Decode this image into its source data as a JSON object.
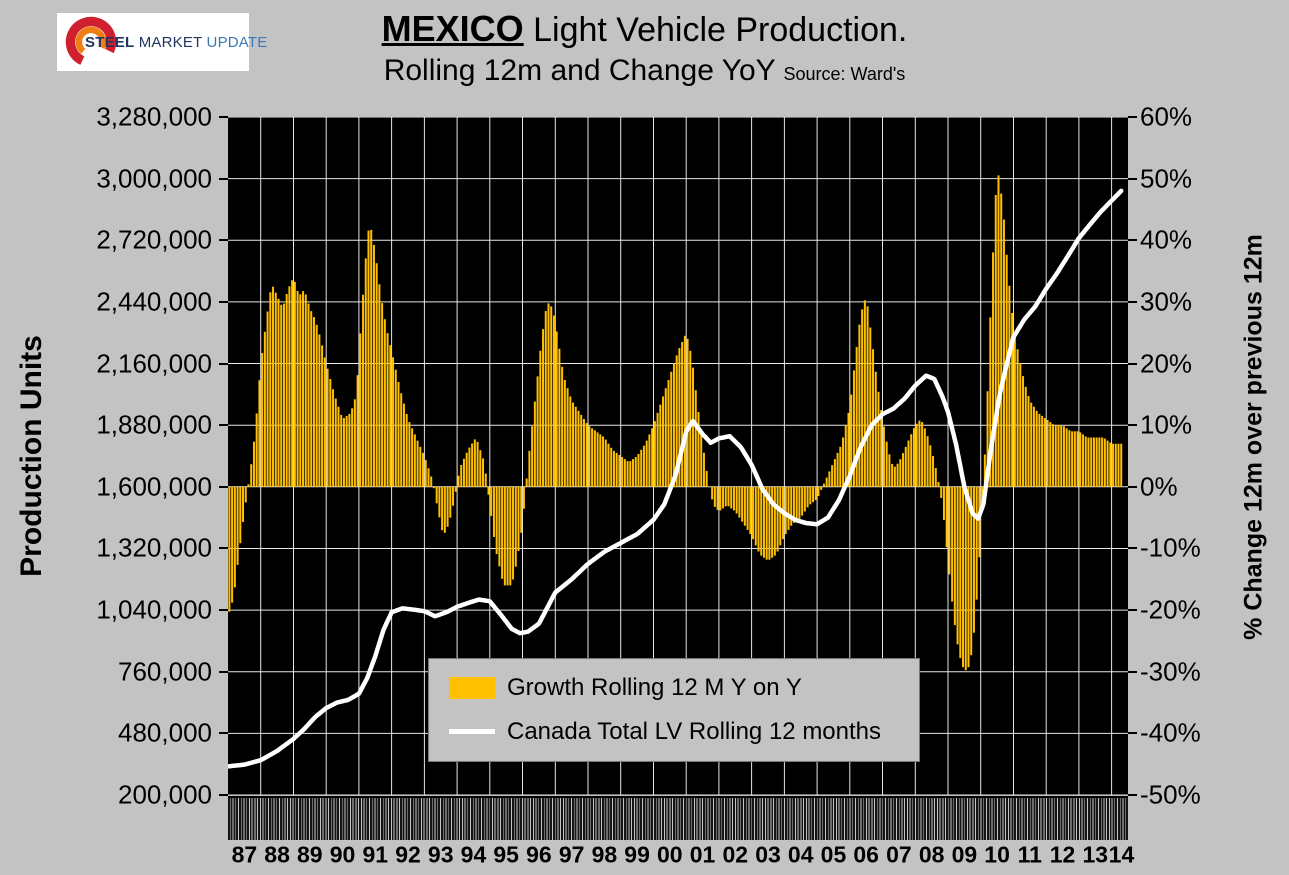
{
  "logo": {
    "steel": "STEEL",
    "market": "MARKET",
    "update": "UPDATE"
  },
  "title": {
    "country": "MEXICO",
    "main_rest": " Light Vehicle Production.",
    "line2": "Rolling 12m and Change YoY",
    "source": "Source: Ward's"
  },
  "left_axis": {
    "title": "Production Units",
    "ticks": [
      "3,280,000",
      "3,000,000",
      "2,720,000",
      "2,440,000",
      "2,160,000",
      "1,880,000",
      "1,600,000",
      "1,320,000",
      "1,040,000",
      "760,000",
      "480,000",
      "200,000"
    ]
  },
  "right_axis": {
    "title": "% Change 12m over previous 12m",
    "ticks": [
      "60%",
      "50%",
      "40%",
      "30%",
      "20%",
      "10%",
      "0%",
      "-10%",
      "-20%",
      "-30%",
      "-40%",
      "-50%"
    ]
  },
  "x_axis": {
    "years": [
      "87",
      "88",
      "89",
      "90",
      "91",
      "92",
      "93",
      "94",
      "95",
      "96",
      "97",
      "98",
      "99",
      "00",
      "01",
      "02",
      "03",
      "04",
      "05",
      "06",
      "07",
      "08",
      "09",
      "10",
      "11",
      "12",
      "13",
      "14"
    ]
  },
  "legend": {
    "items": [
      {
        "label": "Growth Rolling 12 M Y on Y",
        "type": "bar",
        "color": "#FFC000"
      },
      {
        "label": "Canada Total LV Rolling 12 months",
        "type": "line",
        "color": "#FFFFFF"
      }
    ]
  },
  "chart_data": {
    "type": "bar+line",
    "interval": "monthly",
    "x_domain": [
      1987.0,
      2014.5
    ],
    "data_end": 2014.33,
    "left_axis": {
      "label": "Production Units",
      "min": 200000,
      "max": 3280000,
      "step": 280000
    },
    "right_axis": {
      "label": "% Change 12m over previous 12m",
      "min": -50,
      "max": 60,
      "step": 10,
      "unit": "%"
    },
    "plot_background": "#000000",
    "grid_color": "#FFFFFF",
    "series": [
      {
        "name": "Growth Rolling 12 M Y on Y",
        "type": "bar",
        "axis": "right",
        "color": "#FFC000",
        "anchors": [
          [
            1987.0,
            -21
          ],
          [
            1987.17,
            -18
          ],
          [
            1987.33,
            -11
          ],
          [
            1987.5,
            -4
          ],
          [
            1987.67,
            2
          ],
          [
            1987.83,
            9
          ],
          [
            1988.0,
            20
          ],
          [
            1988.17,
            27
          ],
          [
            1988.33,
            33
          ],
          [
            1988.5,
            31
          ],
          [
            1988.67,
            29
          ],
          [
            1988.83,
            32
          ],
          [
            1989.0,
            34
          ],
          [
            1989.17,
            31
          ],
          [
            1989.33,
            32
          ],
          [
            1989.5,
            29
          ],
          [
            1989.67,
            27
          ],
          [
            1989.83,
            24
          ],
          [
            1990.0,
            20
          ],
          [
            1990.25,
            15
          ],
          [
            1990.5,
            11
          ],
          [
            1990.75,
            12
          ],
          [
            1990.92,
            15
          ],
          [
            1991.08,
            28
          ],
          [
            1991.25,
            40
          ],
          [
            1991.33,
            43
          ],
          [
            1991.5,
            38
          ],
          [
            1991.67,
            31
          ],
          [
            1991.83,
            26
          ],
          [
            1992.0,
            22
          ],
          [
            1992.25,
            16
          ],
          [
            1992.5,
            11
          ],
          [
            1992.75,
            8
          ],
          [
            1993.0,
            5
          ],
          [
            1993.25,
            1
          ],
          [
            1993.42,
            -4
          ],
          [
            1993.58,
            -8
          ],
          [
            1993.75,
            -6
          ],
          [
            1993.92,
            -2
          ],
          [
            1994.08,
            3
          ],
          [
            1994.33,
            6
          ],
          [
            1994.58,
            8
          ],
          [
            1994.83,
            4
          ],
          [
            1995.0,
            -3
          ],
          [
            1995.17,
            -10
          ],
          [
            1995.42,
            -16
          ],
          [
            1995.67,
            -16
          ],
          [
            1995.83,
            -12
          ],
          [
            1996.0,
            -6
          ],
          [
            1996.17,
            4
          ],
          [
            1996.42,
            16
          ],
          [
            1996.58,
            24
          ],
          [
            1996.75,
            30
          ],
          [
            1996.92,
            29
          ],
          [
            1997.08,
            24
          ],
          [
            1997.25,
            18
          ],
          [
            1997.5,
            14
          ],
          [
            1997.75,
            12
          ],
          [
            1998.0,
            10
          ],
          [
            1998.25,
            9
          ],
          [
            1998.5,
            8
          ],
          [
            1998.75,
            6
          ],
          [
            1999.0,
            5
          ],
          [
            1999.25,
            4
          ],
          [
            1999.5,
            5
          ],
          [
            1999.75,
            7
          ],
          [
            2000.0,
            10
          ],
          [
            2000.25,
            14
          ],
          [
            2000.5,
            18
          ],
          [
            2000.75,
            22
          ],
          [
            2001.0,
            25
          ],
          [
            2001.17,
            21
          ],
          [
            2001.33,
            14
          ],
          [
            2001.5,
            7
          ],
          [
            2001.67,
            1
          ],
          [
            2001.83,
            -3
          ],
          [
            2002.0,
            -4
          ],
          [
            2002.25,
            -3
          ],
          [
            2002.5,
            -4
          ],
          [
            2002.75,
            -6
          ],
          [
            2003.0,
            -8
          ],
          [
            2003.25,
            -11
          ],
          [
            2003.5,
            -12
          ],
          [
            2003.75,
            -11
          ],
          [
            2004.0,
            -8
          ],
          [
            2004.25,
            -6
          ],
          [
            2004.5,
            -5
          ],
          [
            2004.75,
            -3
          ],
          [
            2005.0,
            -2
          ],
          [
            2005.25,
            1
          ],
          [
            2005.5,
            4
          ],
          [
            2005.75,
            7
          ],
          [
            2006.0,
            13
          ],
          [
            2006.17,
            21
          ],
          [
            2006.33,
            28
          ],
          [
            2006.5,
            31
          ],
          [
            2006.67,
            24
          ],
          [
            2006.83,
            17
          ],
          [
            2007.0,
            11
          ],
          [
            2007.17,
            6
          ],
          [
            2007.33,
            3
          ],
          [
            2007.5,
            4
          ],
          [
            2007.67,
            6
          ],
          [
            2007.83,
            8
          ],
          [
            2008.0,
            10
          ],
          [
            2008.17,
            11
          ],
          [
            2008.33,
            9
          ],
          [
            2008.5,
            6
          ],
          [
            2008.67,
            2
          ],
          [
            2008.83,
            -3
          ],
          [
            2009.0,
            -12
          ],
          [
            2009.17,
            -21
          ],
          [
            2009.33,
            -27
          ],
          [
            2009.5,
            -30
          ],
          [
            2009.67,
            -29
          ],
          [
            2009.83,
            -22
          ],
          [
            2010.0,
            -8
          ],
          [
            2010.17,
            10
          ],
          [
            2010.33,
            33
          ],
          [
            2010.5,
            52
          ],
          [
            2010.67,
            46
          ],
          [
            2010.83,
            35
          ],
          [
            2011.0,
            26
          ],
          [
            2011.17,
            21
          ],
          [
            2011.33,
            17
          ],
          [
            2011.5,
            14
          ],
          [
            2011.75,
            12
          ],
          [
            2012.0,
            11
          ],
          [
            2012.25,
            10
          ],
          [
            2012.5,
            10
          ],
          [
            2012.75,
            9
          ],
          [
            2013.0,
            9
          ],
          [
            2013.25,
            8
          ],
          [
            2013.5,
            8
          ],
          [
            2013.75,
            8
          ],
          [
            2014.0,
            7
          ],
          [
            2014.33,
            7
          ]
        ]
      },
      {
        "name": "Canada Total LV Rolling 12 months",
        "type": "line",
        "axis": "left",
        "color": "#FFFFFF",
        "anchors": [
          [
            1987.0,
            330000
          ],
          [
            1987.5,
            338000
          ],
          [
            1988.0,
            358000
          ],
          [
            1988.5,
            400000
          ],
          [
            1989.0,
            455000
          ],
          [
            1989.33,
            500000
          ],
          [
            1989.67,
            555000
          ],
          [
            1990.0,
            595000
          ],
          [
            1990.33,
            620000
          ],
          [
            1990.67,
            632000
          ],
          [
            1991.0,
            660000
          ],
          [
            1991.25,
            730000
          ],
          [
            1991.5,
            830000
          ],
          [
            1991.75,
            950000
          ],
          [
            1992.0,
            1030000
          ],
          [
            1992.33,
            1048000
          ],
          [
            1992.67,
            1042000
          ],
          [
            1993.0,
            1035000
          ],
          [
            1993.33,
            1012000
          ],
          [
            1993.67,
            1030000
          ],
          [
            1994.0,
            1055000
          ],
          [
            1994.33,
            1072000
          ],
          [
            1994.67,
            1088000
          ],
          [
            1995.0,
            1080000
          ],
          [
            1995.33,
            1020000
          ],
          [
            1995.67,
            955000
          ],
          [
            1995.92,
            935000
          ],
          [
            1996.17,
            942000
          ],
          [
            1996.5,
            978000
          ],
          [
            1997.0,
            1120000
          ],
          [
            1997.5,
            1180000
          ],
          [
            1998.0,
            1250000
          ],
          [
            1998.5,
            1305000
          ],
          [
            1999.0,
            1345000
          ],
          [
            1999.5,
            1385000
          ],
          [
            2000.0,
            1450000
          ],
          [
            2000.33,
            1520000
          ],
          [
            2000.67,
            1650000
          ],
          [
            2001.0,
            1850000
          ],
          [
            2001.2,
            1900000
          ],
          [
            2001.5,
            1840000
          ],
          [
            2001.75,
            1800000
          ],
          [
            2002.0,
            1820000
          ],
          [
            2002.33,
            1830000
          ],
          [
            2002.67,
            1780000
          ],
          [
            2003.0,
            1700000
          ],
          [
            2003.33,
            1590000
          ],
          [
            2003.67,
            1520000
          ],
          [
            2004.0,
            1480000
          ],
          [
            2004.33,
            1450000
          ],
          [
            2004.67,
            1435000
          ],
          [
            2005.0,
            1430000
          ],
          [
            2005.33,
            1460000
          ],
          [
            2005.67,
            1540000
          ],
          [
            2006.0,
            1650000
          ],
          [
            2006.33,
            1780000
          ],
          [
            2006.67,
            1880000
          ],
          [
            2007.0,
            1930000
          ],
          [
            2007.33,
            1955000
          ],
          [
            2007.67,
            2000000
          ],
          [
            2008.0,
            2060000
          ],
          [
            2008.33,
            2105000
          ],
          [
            2008.58,
            2090000
          ],
          [
            2008.83,
            2010000
          ],
          [
            2009.0,
            1940000
          ],
          [
            2009.25,
            1790000
          ],
          [
            2009.5,
            1600000
          ],
          [
            2009.75,
            1480000
          ],
          [
            2009.92,
            1455000
          ],
          [
            2010.08,
            1520000
          ],
          [
            2010.33,
            1790000
          ],
          [
            2010.58,
            2020000
          ],
          [
            2010.83,
            2180000
          ],
          [
            2011.0,
            2280000
          ],
          [
            2011.33,
            2360000
          ],
          [
            2011.67,
            2420000
          ],
          [
            2012.0,
            2500000
          ],
          [
            2012.33,
            2570000
          ],
          [
            2012.67,
            2650000
          ],
          [
            2013.0,
            2730000
          ],
          [
            2013.33,
            2790000
          ],
          [
            2013.67,
            2850000
          ],
          [
            2014.0,
            2900000
          ],
          [
            2014.33,
            2950000
          ]
        ]
      }
    ]
  }
}
